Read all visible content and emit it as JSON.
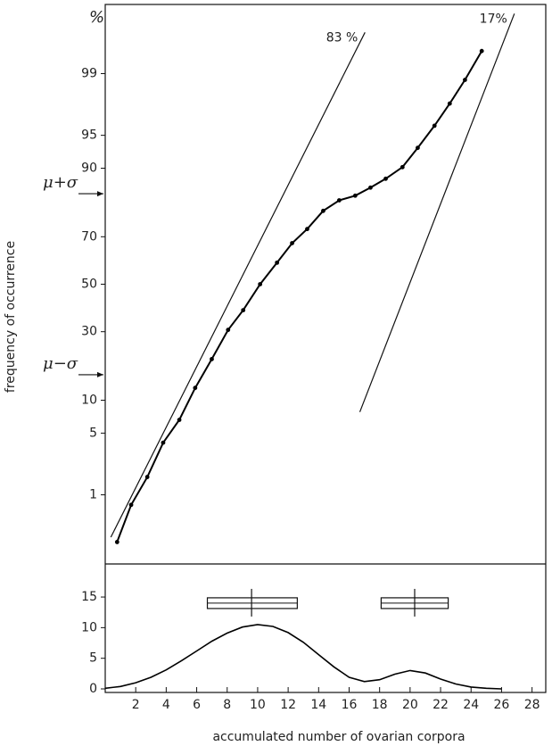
{
  "chart_data": [
    {
      "type": "probability",
      "unit": "%",
      "ylabel": "frequency of occurrence",
      "yscale": "probit",
      "xlim": [
        0,
        28.9
      ],
      "ylim": [
        0.1,
        99.9
      ],
      "yticks": [
        1,
        5,
        10,
        30,
        50,
        70,
        90,
        95,
        99
      ],
      "series": [
        {
          "color": "#000000",
          "x": [
            0.78,
            1.7,
            2.76,
            3.8,
            4.86,
            5.9,
            6.99,
            8.06,
            9.05,
            10.16,
            11.27,
            12.26,
            13.25,
            14.3,
            15.35,
            16.4,
            17.4,
            18.4,
            19.5,
            20.5,
            21.6,
            22.6,
            23.6,
            24.7
          ],
          "values": [
            0.22,
            0.74,
            1.66,
            4.0,
            6.7,
            12.6,
            20.4,
            30.7,
            38.7,
            50,
            59.4,
            67.5,
            72.9,
            79.1,
            82.3,
            83.6,
            85.7,
            87.8,
            90.2,
            93.4,
            96.0,
            97.7,
            98.8,
            99.5
          ]
        }
      ],
      "lines": [
        {
          "label": "83 %",
          "x": [
            0.37,
            17.04
          ],
          "values": [
            0.26,
            99.73
          ]
        },
        {
          "label": "17%",
          "x": [
            16.7,
            26.84
          ],
          "values": [
            7.9,
            99.86
          ]
        }
      ],
      "annotations": [
        {
          "text": "μ+σ",
          "value": 84.13
        },
        {
          "text": "μ−σ",
          "value": 15.87
        }
      ]
    },
    {
      "type": "line",
      "xlabel": "accumulated number of ovarian corpora",
      "xlim": [
        0,
        28.9
      ],
      "xticks": [
        2,
        4,
        6,
        8,
        10,
        12,
        14,
        16,
        18,
        20,
        22,
        24,
        26,
        28
      ],
      "ylim": [
        0,
        20.4
      ],
      "yticks": [
        0,
        5,
        10,
        15
      ],
      "color": "#000000",
      "x": [
        0,
        1,
        2,
        3,
        4,
        5,
        6,
        7,
        8,
        9,
        10,
        11,
        12,
        13,
        14,
        15,
        16,
        17,
        18,
        19,
        20,
        21,
        22,
        23,
        24,
        25,
        26
      ],
      "values": [
        0.1,
        0.4,
        1.0,
        1.9,
        3.1,
        4.6,
        6.2,
        7.8,
        9.1,
        10.1,
        10.5,
        10.2,
        9.2,
        7.6,
        5.6,
        3.6,
        1.9,
        1.2,
        1.5,
        2.4,
        3.0,
        2.6,
        1.6,
        0.8,
        0.3,
        0.1,
        0
      ],
      "boxes": [
        {
          "low": 6.7,
          "high": 12.6,
          "mid": 9.6,
          "y": 14
        },
        {
          "low": 18.1,
          "high": 22.5,
          "mid": 20.3,
          "y": 14
        }
      ]
    }
  ]
}
